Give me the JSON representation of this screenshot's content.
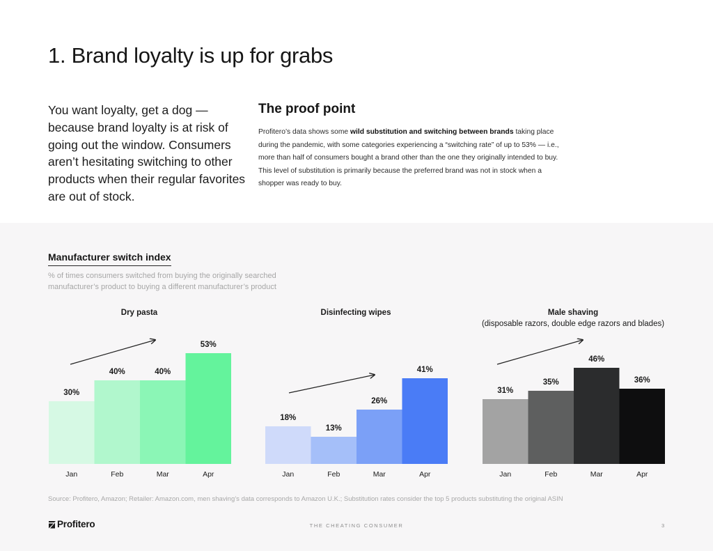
{
  "page": {
    "title": "1. Brand loyalty is up for grabs",
    "lead": "You want loyalty, get a dog — because brand loyalty is at risk of going out the window. Consumers aren’t hesitating switching to other products when their regular favorites are out of stock.",
    "proof_title": "The proof point",
    "proof_body_before": "Profitero’s data shows some ",
    "proof_body_bold": "wild substitution and switching between brands",
    "proof_body_after": " taking place during the pandemic, with some categories experiencing a “switching rate” of up to 53% — i.e., more than half of consumers bought a brand other than the one they originally intended to buy. This level of substitution is primarily because the preferred brand was not in stock when a shopper was ready to buy."
  },
  "index": {
    "title": "Manufacturer switch index",
    "subtitle": "% of times consumers switched from buying the originally searched manufacturer’s product to buying a different manufacturer’s product"
  },
  "chart_data": [
    {
      "type": "bar",
      "title": "Dry pasta",
      "subtitle": "",
      "categories": [
        "Jan",
        "Feb",
        "Mar",
        "Apr"
      ],
      "values": [
        30,
        40,
        40,
        53
      ],
      "labels": [
        "30%",
        "40%",
        "40%",
        "53%"
      ],
      "colors": [
        "#d6f9e4",
        "#b1f7cd",
        "#8bf6b6",
        "#64f39c"
      ],
      "ylim": [
        0,
        53
      ],
      "grid": false,
      "legend": "none"
    },
    {
      "type": "bar",
      "title": "Disinfecting wipes",
      "subtitle": "",
      "categories": [
        "Jan",
        "Feb",
        "Mar",
        "Apr"
      ],
      "values": [
        18,
        13,
        26,
        41
      ],
      "labels": [
        "18%",
        "13%",
        "26%",
        "41%"
      ],
      "colors": [
        "#cfdafa",
        "#a5bff9",
        "#7ba0f7",
        "#4a7cf6"
      ],
      "ylim": [
        0,
        53
      ],
      "grid": false,
      "legend": "none"
    },
    {
      "type": "bar",
      "title": "Male shaving",
      "subtitle": "(disposable razors, double edge razors and blades)",
      "categories": [
        "Jan",
        "Feb",
        "Mar",
        "Apr"
      ],
      "values": [
        31,
        35,
        46,
        36
      ],
      "labels": [
        "31%",
        "35%",
        "46%",
        "36%"
      ],
      "colors": [
        "#a3a3a3",
        "#5e5f5f",
        "#2b2c2d",
        "#0e0e0f"
      ],
      "ylim": [
        0,
        53
      ],
      "grid": false,
      "legend": "none"
    }
  ],
  "footer": {
    "source": "Source: Profitero, Amazon; Retailer: Amazon.com, men shaving’s data corresponds to Amazon U.K.; Substitution rates consider the top 5 products substituting the original ASIN",
    "logo": "Profitero",
    "center": "THE CHEATING CONSUMER",
    "page_number": "3"
  }
}
